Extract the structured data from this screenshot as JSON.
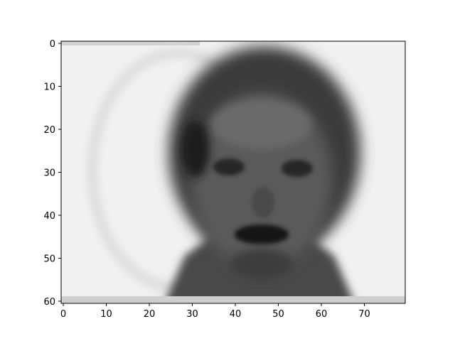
{
  "chart_data": {
    "type": "image",
    "image_subject": "blurry grayscale portrait of a face",
    "colormap": "gray",
    "image_shape": [
      61,
      80
    ],
    "xlim": [
      -0.5,
      79.5
    ],
    "ylim": [
      60.5,
      -0.5
    ],
    "xticks": [
      0,
      10,
      20,
      30,
      40,
      50,
      60,
      70
    ],
    "yticks": [
      0,
      10,
      20,
      30,
      40,
      50,
      60
    ],
    "xtick_labels": [
      "0",
      "10",
      "20",
      "30",
      "40",
      "50",
      "60",
      "70"
    ],
    "ytick_labels": [
      "0",
      "10",
      "20",
      "30",
      "40",
      "50",
      "60"
    ],
    "title": "",
    "xlabel": "",
    "ylabel": ""
  }
}
